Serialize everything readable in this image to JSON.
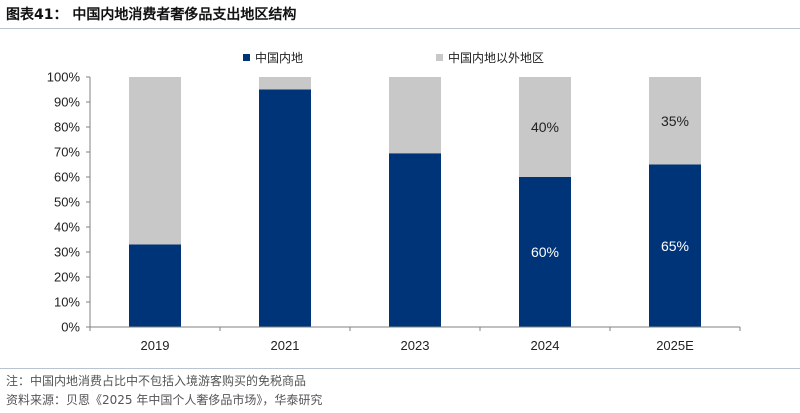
{
  "header": {
    "title": "图表41：  中国内地消费者奢侈品支出地区结构"
  },
  "chart_data": {
    "type": "bar",
    "stacked": true,
    "percent_stacked": true,
    "categories": [
      "2019",
      "2021",
      "2023",
      "2024",
      "2025E"
    ],
    "series": [
      {
        "name": "中国内地",
        "values": [
          33,
          95,
          69.5,
          60,
          65
        ],
        "color": "#003478"
      },
      {
        "name": "中国内地以外地区",
        "values": [
          67,
          5,
          30.5,
          40,
          35
        ],
        "color": "#c8c8c8"
      }
    ],
    "data_labels": [
      {
        "category": "2024",
        "series": "中国内地",
        "text": "60%"
      },
      {
        "category": "2025E",
        "series": "中国内地",
        "text": "65%"
      },
      {
        "category": "2024",
        "series": "中国内地以外地区",
        "text": "40%"
      },
      {
        "category": "2025E",
        "series": "中国内地以外地区",
        "text": "35%"
      }
    ],
    "y_ticks": [
      "0%",
      "10%",
      "20%",
      "30%",
      "40%",
      "50%",
      "60%",
      "70%",
      "80%",
      "90%",
      "100%"
    ],
    "ylim": [
      0,
      100
    ],
    "grid": false,
    "legend_position": "top"
  },
  "footer": {
    "note": "注：中国内地消费占比中不包括入境游客购买的免税商品",
    "source": "资料来源：贝恩《2025 年中国个人奢侈品市场》，华泰研究"
  }
}
